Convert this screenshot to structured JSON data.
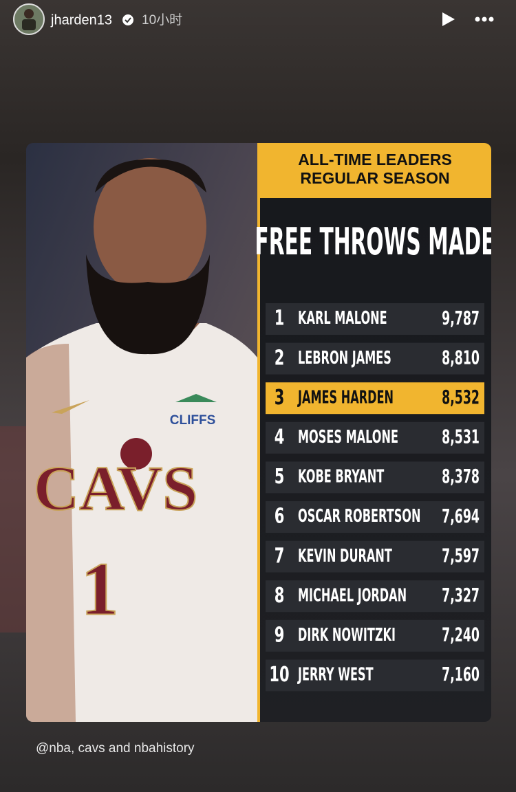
{
  "header": {
    "username": "jharden13",
    "time": "10小时"
  },
  "card": {
    "title_lines": [
      "ALL-TIME LEADERS",
      "REGULAR SEASON"
    ],
    "stat": "FREE THROWS MADE",
    "photo": {
      "sponsor": "CLIFFS",
      "team": "CAVS",
      "number": "1"
    },
    "rows": [
      {
        "rank": "1",
        "name": "KARL MALONE",
        "value": "9,787"
      },
      {
        "rank": "2",
        "name": "LEBRON JAMES",
        "value": "8,810"
      },
      {
        "rank": "3",
        "name": "JAMES HARDEN",
        "value": "8,532",
        "highlight": true
      },
      {
        "rank": "4",
        "name": "MOSES MALONE",
        "value": "8,531"
      },
      {
        "rank": "5",
        "name": "KOBE BRYANT",
        "value": "8,378"
      },
      {
        "rank": "6",
        "name": "OSCAR ROBERTSON",
        "value": "7,694"
      },
      {
        "rank": "7",
        "name": "KEVIN DURANT",
        "value": "7,597"
      },
      {
        "rank": "8",
        "name": "MICHAEL JORDAN",
        "value": "7,327"
      },
      {
        "rank": "9",
        "name": "DIRK NOWITZKI",
        "value": "7,240"
      },
      {
        "rank": "10",
        "name": "JERRY WEST",
        "value": "7,160"
      }
    ]
  },
  "caption": "@nba, cavs and nbahistory"
}
